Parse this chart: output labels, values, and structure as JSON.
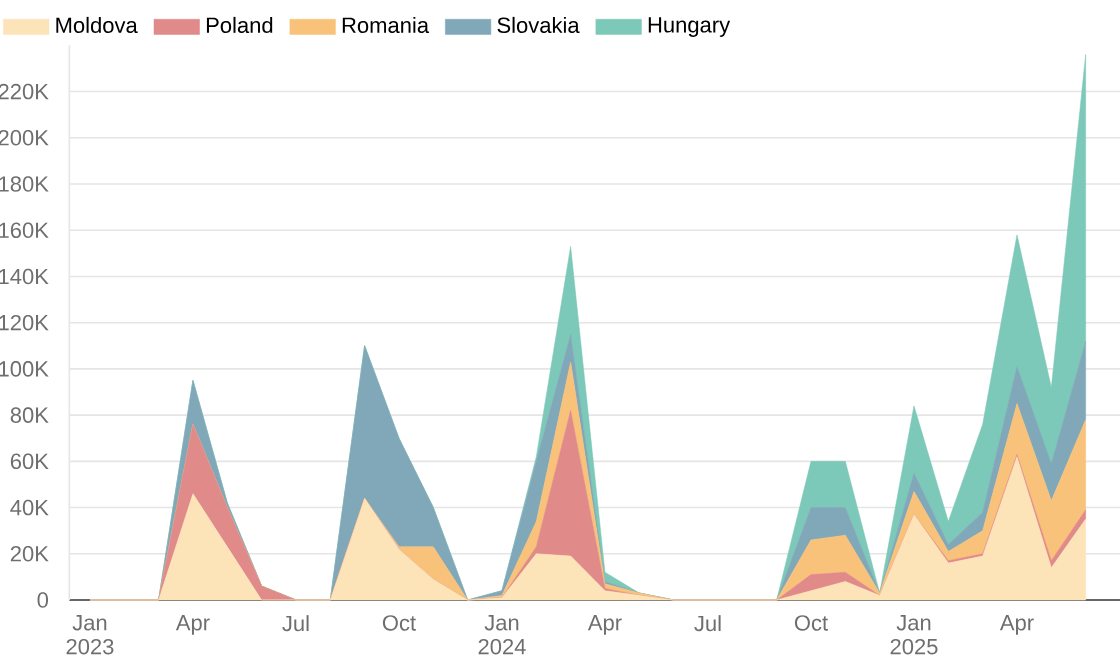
{
  "chart_data": {
    "type": "area",
    "stacked": true,
    "x": [
      "2023-01",
      "2023-02",
      "2023-03",
      "2023-04",
      "2023-05",
      "2023-06",
      "2023-07",
      "2023-08",
      "2023-09",
      "2023-10",
      "2023-11",
      "2023-12",
      "2024-01",
      "2024-02",
      "2024-03",
      "2024-04",
      "2024-05",
      "2024-06",
      "2024-07",
      "2024-08",
      "2024-09",
      "2024-10",
      "2024-11",
      "2024-12",
      "2025-01",
      "2025-02",
      "2025-03",
      "2025-04",
      "2025-05",
      "2025-06"
    ],
    "series": [
      {
        "name": "Moldova",
        "color": "#fde3b8",
        "values": [
          0,
          0,
          0,
          46000,
          23000,
          0,
          0,
          0,
          44000,
          22000,
          9000,
          0,
          1000,
          20000,
          19000,
          4000,
          2000,
          0,
          0,
          0,
          0,
          4000,
          8000,
          2000,
          37000,
          16000,
          19000,
          62000,
          14000,
          35000
        ]
      },
      {
        "name": "Poland",
        "color": "#e08a8a",
        "values": [
          0,
          0,
          0,
          30000,
          17000,
          6000,
          0,
          0,
          0,
          0,
          0,
          0,
          0,
          3000,
          63000,
          1000,
          0,
          0,
          0,
          0,
          0,
          7000,
          4000,
          0,
          0,
          1000,
          1000,
          1000,
          3000,
          4000
        ]
      },
      {
        "name": "Romania",
        "color": "#f9c27a",
        "values": [
          0,
          0,
          0,
          0,
          0,
          0,
          0,
          0,
          0,
          1000,
          14000,
          0,
          1000,
          11000,
          21000,
          2000,
          1000,
          0,
          0,
          0,
          0,
          15000,
          16000,
          1000,
          10000,
          4000,
          10000,
          22000,
          26000,
          39000
        ]
      },
      {
        "name": "Slovakia",
        "color": "#80a8b8",
        "values": [
          0,
          0,
          0,
          19000,
          2000,
          0,
          0,
          0,
          66000,
          47000,
          17000,
          0,
          2000,
          26000,
          12000,
          1000,
          0,
          0,
          0,
          0,
          0,
          14000,
          12000,
          0,
          8000,
          3000,
          8000,
          16000,
          16000,
          34000
        ]
      },
      {
        "name": "Hungary",
        "color": "#7cc9b9",
        "values": [
          0,
          0,
          0,
          0,
          0,
          0,
          0,
          0,
          0,
          0,
          0,
          0,
          0,
          2000,
          38000,
          4000,
          0,
          0,
          0,
          0,
          0,
          20000,
          20000,
          0,
          29000,
          10000,
          38000,
          57000,
          33000,
          124000
        ]
      }
    ],
    "xlim": [
      "2022-12-13",
      "2025-07-01"
    ],
    "xticks": [
      {
        "value": "2023-01",
        "label": "Jan 2023"
      },
      {
        "value": "2023-04",
        "label": "Apr"
      },
      {
        "value": "2023-07",
        "label": "Jul"
      },
      {
        "value": "2023-10",
        "label": "Oct"
      },
      {
        "value": "2024-01",
        "label": "Jan 2024"
      },
      {
        "value": "2024-04",
        "label": "Apr"
      },
      {
        "value": "2024-07",
        "label": "Jul"
      },
      {
        "value": "2024-10",
        "label": "Oct"
      },
      {
        "value": "2025-01",
        "label": "Jan 2025"
      },
      {
        "value": "2025-04",
        "label": "Apr"
      }
    ],
    "ylim": [
      0,
      240000
    ],
    "yticks": [
      0,
      {
        "value": 20000,
        "label": "20K"
      },
      {
        "value": 40000,
        "label": "40K"
      },
      {
        "value": 60000,
        "label": "60K"
      },
      {
        "value": 80000,
        "label": "80K"
      },
      {
        "value": 100000,
        "label": "100K"
      },
      {
        "value": 120000,
        "label": "120K"
      },
      {
        "value": 140000,
        "label": "140K"
      },
      {
        "value": 160000,
        "label": "160K"
      },
      {
        "value": 180000,
        "label": "180K"
      },
      {
        "value": 200000,
        "label": "200K"
      },
      {
        "value": 220000,
        "label": "220K"
      }
    ],
    "grid": "y",
    "legend": "top left"
  }
}
